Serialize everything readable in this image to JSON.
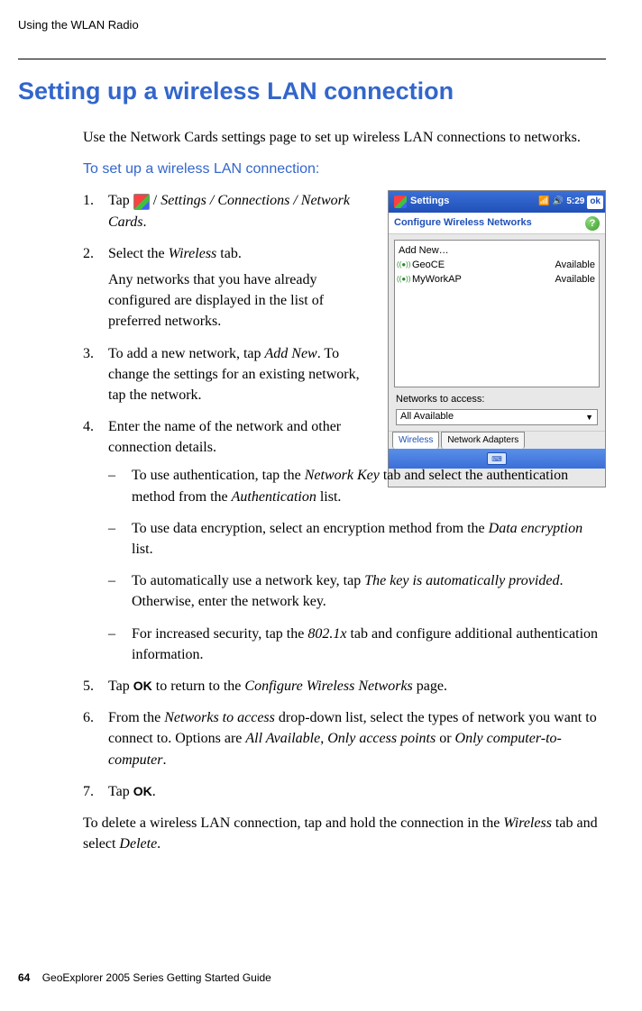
{
  "header": "Using the WLAN Radio",
  "mainHeading": "Setting up a wireless LAN connection",
  "intro": "Use the Network Cards settings page to set up wireless LAN connections to networks.",
  "subHeading": "To set up a wireless LAN connection:",
  "steps": {
    "s1a": "Tap ",
    "s1b": " / ",
    "s1c": "Settings / Connections / Network Cards",
    "s1d": ".",
    "s2a": "Select the ",
    "s2b": "Wireless",
    "s2c": " tab.",
    "s2sub": "Any networks that you have already configured are displayed in the list of preferred networks.",
    "s3a": "To add a new network, tap ",
    "s3b": "Add New",
    "s3c": ". To change the settings for an existing network, tap the network.",
    "s4": " Enter the name of the network and other connection details.",
    "d1a": "To use authentication, tap the ",
    "d1b": "Network Key",
    "d1c": " tab and select the authentication method from the ",
    "d1d": "Authentication",
    "d1e": " list.",
    "d2a": "To use data encryption, select an encryption method from the ",
    "d2b": "Data encryption",
    "d2c": " list.",
    "d3a": "To automatically use a network key, tap ",
    "d3b": "The key is automatically provided",
    "d3c": ". Otherwise, enter the network key.",
    "d4a": "For increased security, tap the ",
    "d4b": "802.1x",
    "d4c": " tab and configure additional authentication information.",
    "s5a": "Tap ",
    "s5b": "OK",
    "s5c": " to return to the ",
    "s5d": "Configure Wireless Networks",
    "s5e": " page.",
    "s6a": "From the ",
    "s6b": "Networks to access",
    "s6c": " drop-down list, select the types of network you want to connect to. Options are ",
    "s6d": "All Available",
    "s6e": ", ",
    "s6f": "Only access points",
    "s6g": " or ",
    "s6h": "Only computer-to-computer",
    "s6i": ".",
    "s7a": "Tap ",
    "s7b": "OK",
    "s7c": "."
  },
  "finalA": "To delete a wireless LAN connection, tap and hold the connection in the ",
  "finalB": "Wireless",
  "finalC": " tab and select ",
  "finalD": "Delete",
  "finalE": ".",
  "footer": {
    "page": "64",
    "title": "GeoExplorer 2005 Series Getting Started Guide"
  },
  "screenshot": {
    "title": "Settings",
    "time": "5:29",
    "ok": "ok",
    "subtitle": "Configure Wireless Networks",
    "help": "?",
    "addNew": "Add New…",
    "net1": "GeoCE",
    "net2": "MyWorkAP",
    "avail": "Available",
    "accessLabel": "Networks to access:",
    "ddValue": "All Available",
    "tab1": "Wireless",
    "tab2": "Network Adapters"
  }
}
